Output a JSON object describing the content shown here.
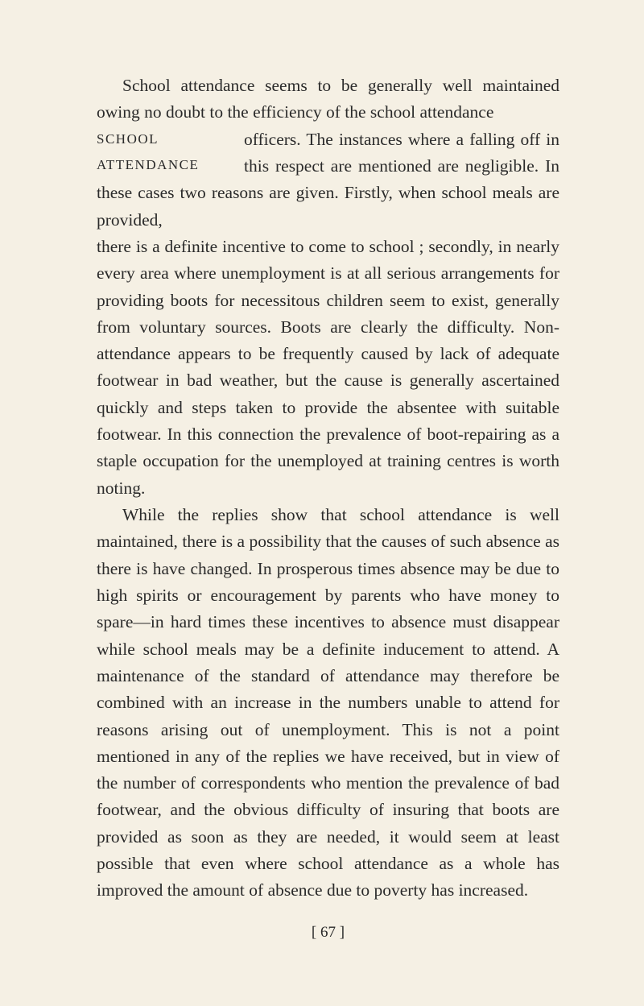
{
  "page": {
    "background_color": "#f5f0e4",
    "text_color": "#2a2a2a",
    "body_fontsize": 21.5,
    "line_height": 1.55,
    "sidenote_fontsize": 17
  },
  "sidenote": {
    "line1": "SCHOOL",
    "line2": "ATTENDANCE"
  },
  "paragraphs": {
    "p1_start": "School attendance seems to be generally well maintained owing no doubt to the efficiency of the school attendance officers. The instances where a falling off in this respect are mentioned are negligible. In these cases two reasons are given. Firstly, when school meals are provided, there is a definite incentive to come to school ; secondly, in nearly every area where unemployment is at all serious arrangements for providing boots for necessitous children seem to exist, generally from voluntary sources. Boots are clearly the difficulty. Non-attendance appears to be frequently caused by lack of adequate footwear in bad weather, but the cause is generally ascertained quickly and steps taken to provide the absentee with suitable footwear. In this connection the prevalence of boot-repairing as a staple occupation for the unemployed at training centres is worth noting.",
    "p2": "While the replies show that school attendance is well maintained, there is a possibility that the causes of such absence as there is have changed. In prosperous times absence may be due to high spirits or encouragement by parents who have money to spare—in hard times these incentives to absence must disappear while school meals may be a definite inducement to attend. A maintenance of the standard of attendance may therefore be combined with an increase in the numbers unable to attend for reasons arising out of unemployment. This is not a point mentioned in any of the replies we have received, but in view of the number of correspondents who mention the prevalence of bad footwear, and the obvious difficulty of insuring that boots are provided as soon as they are needed, it would seem at least possible that even where school attendance as a whole has improved the amount of absence due to poverty has increased."
  },
  "page_number": "[ 67 ]"
}
